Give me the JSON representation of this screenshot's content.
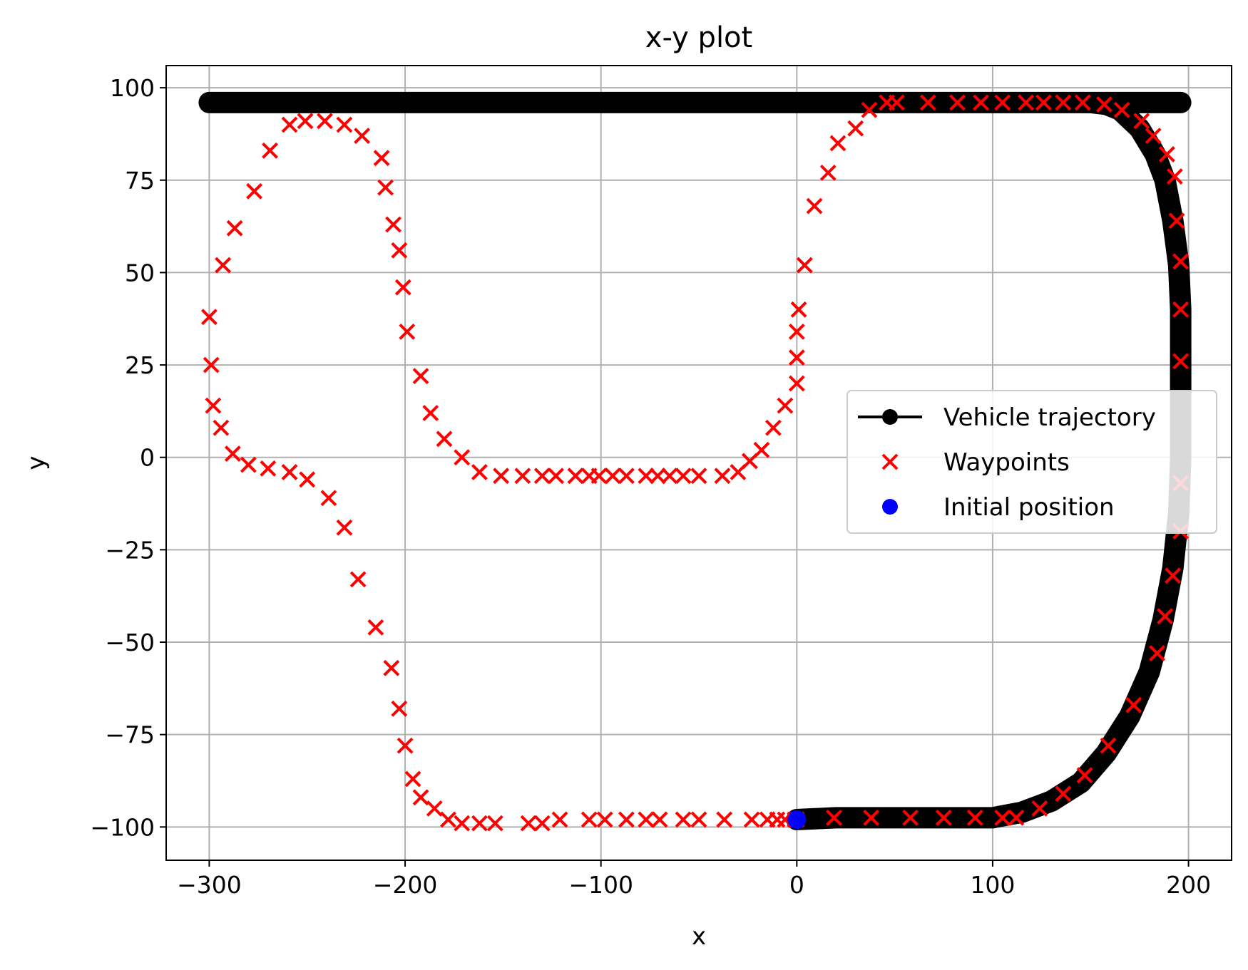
{
  "chart_data": {
    "type": "line",
    "title": "x-y plot",
    "xlabel": "x",
    "ylabel": "y",
    "xlim": [
      -322,
      222
    ],
    "ylim": [
      -109,
      106
    ],
    "xticks": [
      -300,
      -200,
      -100,
      0,
      100,
      200
    ],
    "yticks": [
      -100,
      -75,
      -50,
      -25,
      0,
      25,
      50,
      75,
      100
    ],
    "xtick_labels": [
      "−300",
      "−200",
      "−100",
      "0",
      "100",
      "200"
    ],
    "ytick_labels": [
      "−100",
      "−75",
      "−50",
      "−25",
      "0",
      "25",
      "50",
      "75",
      "100"
    ],
    "grid": true,
    "legend_position": "center-right",
    "series": [
      {
        "name": "Vehicle trajectory",
        "kind": "line",
        "color": "#000000",
        "x": [
          0,
          20,
          50,
          80,
          100,
          115,
          130,
          145,
          158,
          170,
          180,
          187,
          192,
          195,
          196,
          196,
          196,
          196,
          195,
          192,
          188,
          183,
          175,
          165,
          158,
          150,
          140,
          125,
          110,
          100,
          80,
          60,
          40,
          20,
          0,
          -20,
          -40,
          -60,
          -80,
          -100,
          -120,
          -140,
          -155,
          -165,
          -175,
          -185,
          -193,
          -197,
          -199,
          -200,
          -201,
          -203,
          -207,
          -213,
          -220,
          -228,
          -236,
          -244,
          -252,
          -260,
          -268,
          -275,
          -283,
          -290,
          -296,
          -299,
          -300,
          -298,
          -293,
          -285,
          -275,
          -262,
          -250,
          -238,
          -226,
          -217,
          -210,
          -205,
          -202,
          -200,
          -198,
          -193,
          -186,
          -178,
          -170,
          -160,
          -150,
          -130,
          -110,
          -90,
          -70,
          -50,
          -35,
          -23,
          -15,
          -8,
          -4,
          -1,
          0,
          0,
          1,
          3,
          7,
          13,
          20,
          28,
          36,
          45,
          60,
          80,
          100,
          120,
          140,
          155,
          167,
          177,
          184,
          189,
          193,
          195,
          196,
          196,
          196,
          196,
          195,
          193,
          190,
          186,
          180,
          172,
          162,
          150,
          135,
          120,
          105,
          90,
          70,
          50,
          30,
          10,
          0
        ],
        "y": [
          -98,
          -97.5,
          -97.5,
          -97.5,
          -97.5,
          -96,
          -93,
          -88,
          -80,
          -70,
          -58,
          -44,
          -30,
          -15,
          0,
          12,
          26,
          40,
          52,
          64,
          75,
          82,
          89,
          94,
          95.5,
          96,
          96,
          96,
          96,
          96,
          96,
          96,
          96,
          96,
          96,
          96,
          96,
          96,
          96,
          96,
          96,
          96,
          96,
          96,
          96,
          96,
          96,
          96,
          96,
          96,
          96,
          96,
          96,
          96,
          96,
          96,
          96,
          96,
          96,
          96,
          96,
          96,
          96,
          96,
          96,
          96,
          96,
          96,
          96,
          96,
          96,
          96,
          96,
          96,
          96,
          96,
          96,
          96,
          96,
          96,
          96,
          96,
          96,
          96,
          96,
          96,
          96,
          96,
          96,
          96,
          96,
          96,
          96,
          96,
          96,
          96,
          96,
          96,
          96,
          96,
          96,
          96,
          96,
          96,
          96,
          96,
          96,
          96,
          96,
          96,
          96,
          96,
          96,
          96,
          96,
          96,
          96,
          96,
          96,
          96,
          96,
          96,
          96,
          96,
          96,
          96,
          96,
          96,
          96,
          96,
          96,
          96,
          96,
          96,
          96,
          96,
          96,
          96,
          96,
          96,
          96
        ]
      },
      {
        "name": "Waypoints",
        "kind": "scatter",
        "marker": "x",
        "color": "#ff0000",
        "x": [
          0,
          19,
          38,
          58,
          75,
          91,
          105,
          112,
          124,
          136,
          147,
          159,
          172,
          184,
          188,
          192,
          196,
          196,
          196,
          196,
          196,
          194,
          193,
          189,
          182,
          176,
          166,
          157,
          146,
          136,
          126,
          117,
          105,
          94,
          82,
          67,
          51,
          46,
          37,
          30,
          21,
          16,
          9,
          4,
          1,
          0,
          0,
          0,
          -6,
          -12,
          -18,
          -24,
          -30,
          -38,
          -50,
          -58,
          -65,
          -71,
          -77,
          -87,
          -94,
          -101,
          -106,
          -113,
          -123,
          -130,
          -140,
          -151,
          -162,
          -171,
          -180,
          -187,
          -192,
          -199,
          -201,
          -203,
          -206,
          -210,
          -212,
          -222,
          -231,
          -241,
          -251,
          -259,
          -269,
          -277,
          -287,
          -293,
          -300,
          -299,
          -298,
          -294,
          -288,
          -280,
          -270,
          -259,
          -250,
          -239,
          -231,
          -224,
          -215,
          -207,
          -203,
          -200,
          -196,
          -192,
          -185,
          -178,
          -171,
          -162,
          -154,
          -137,
          -130,
          -121,
          -106,
          -98,
          -87,
          -77,
          -70,
          -58,
          -50,
          -37,
          -23,
          -15,
          -10,
          -6,
          -1
        ],
        "y": [
          -98,
          -97.5,
          -97.5,
          -97.5,
          -97.5,
          -97.5,
          -97.5,
          -97.5,
          -95,
          -91,
          -86,
          -78,
          -67,
          -53,
          -43,
          -32,
          -20,
          -7,
          26,
          40,
          53,
          64,
          76,
          82,
          87,
          91,
          94,
          95.5,
          96,
          96,
          96,
          96,
          96,
          96,
          96,
          96,
          96,
          96,
          94,
          89,
          85,
          77,
          68,
          52,
          40,
          34,
          27,
          20,
          14,
          8,
          2,
          -1,
          -4,
          -5,
          -5,
          -5,
          -5,
          -5,
          -5,
          -5,
          -5,
          -5,
          -5,
          -5,
          -5,
          -5,
          -5,
          -5,
          -4,
          0,
          5,
          12,
          22,
          34,
          46,
          56,
          63,
          73,
          81,
          87,
          90,
          91,
          91,
          90,
          83,
          72,
          62,
          52,
          38,
          25,
          14,
          8,
          1,
          -2,
          -3,
          -4,
          -6,
          -11,
          -19,
          -33,
          -46,
          -57,
          -68,
          -78,
          -87,
          -92,
          -95,
          -98,
          -99,
          -99,
          -99,
          -99,
          -99,
          -98,
          -98,
          -98,
          -98,
          -98,
          -98,
          -98,
          -98,
          -98,
          -98,
          -98,
          -98,
          -98,
          -98
        ]
      },
      {
        "name": "Initial position",
        "kind": "scatter",
        "marker": "o",
        "color": "#0000ff",
        "x": [
          0
        ],
        "y": [
          -98
        ]
      }
    ]
  }
}
